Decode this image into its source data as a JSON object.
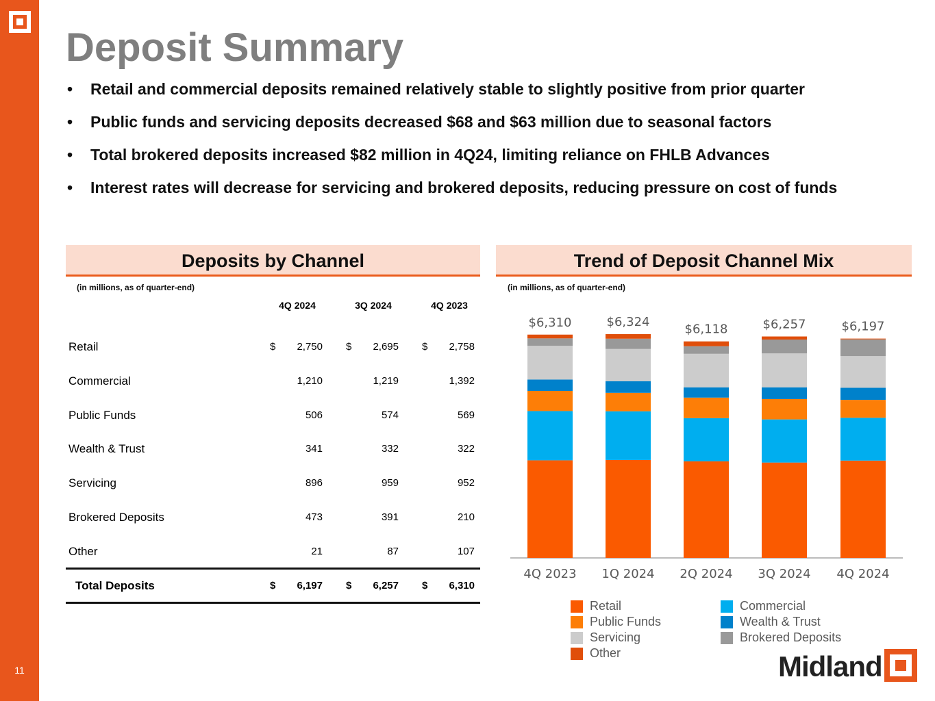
{
  "page_number": "11",
  "title": "Deposit Summary",
  "bullets": [
    "Retail and commercial deposits remained relatively stable to slightly positive from prior quarter",
    "Public funds and servicing deposits decreased $68 and $63 million due to seasonal factors",
    "Total brokered deposits increased $82 million in 4Q24, limiting reliance on FHLB Advances",
    "Interest rates will decrease for servicing and brokered deposits, reducing pressure on cost of funds"
  ],
  "table": {
    "title": "Deposits by Channel",
    "note": "(in millions, as of quarter-end)",
    "headers": [
      "4Q 2024",
      "3Q 2024",
      "4Q 2023"
    ],
    "rows": [
      {
        "label": "Retail",
        "values": [
          "2,750",
          "2,695",
          "2,758"
        ],
        "dollar": true
      },
      {
        "label": "Commercial",
        "values": [
          "1,210",
          "1,219",
          "1,392"
        ]
      },
      {
        "label": "Public Funds",
        "values": [
          "506",
          "574",
          "569"
        ]
      },
      {
        "label": "Wealth & Trust",
        "values": [
          "341",
          "332",
          "322"
        ]
      },
      {
        "label": "Servicing",
        "values": [
          "896",
          "959",
          "952"
        ]
      },
      {
        "label": "Brokered Deposits",
        "values": [
          "473",
          "391",
          "210"
        ]
      },
      {
        "label": "Other",
        "values": [
          "21",
          "87",
          "107"
        ]
      }
    ],
    "total": {
      "label": "Total Deposits",
      "values": [
        "6,197",
        "6,257",
        "6,310"
      ]
    },
    "currency": "$"
  },
  "chart_data": {
    "type": "bar",
    "stacked": true,
    "title": "Trend of Deposit Channel Mix",
    "note": "(in millions, as of quarter-end)",
    "categories": [
      "4Q 2023",
      "1Q 2024",
      "2Q 2024",
      "3Q 2024",
      "4Q 2024"
    ],
    "totals_labels": [
      "$6,310",
      "$6,324",
      "$6,118",
      "$6,257",
      "$6,197"
    ],
    "totals": [
      6310,
      6324,
      6118,
      6257,
      6197
    ],
    "series": [
      {
        "name": "Retail",
        "color": "#fa5a00",
        "values": [
          2758,
          2768,
          2729,
          2695,
          2750
        ]
      },
      {
        "name": "Commercial",
        "color": "#00aeef",
        "values": [
          1392,
          1374,
          1220,
          1219,
          1210
        ]
      },
      {
        "name": "Public Funds",
        "color": "#fd7e07",
        "values": [
          569,
          523,
          581,
          574,
          506
        ]
      },
      {
        "name": "Wealth & Trust",
        "color": "#0081cb",
        "values": [
          322,
          329,
          290,
          332,
          341
        ]
      },
      {
        "name": "Servicing",
        "color": "#cccccc",
        "values": [
          952,
          910,
          948,
          959,
          896
        ]
      },
      {
        "name": "Brokered Deposits",
        "color": "#999999",
        "values": [
          210,
          290,
          213,
          391,
          473
        ]
      },
      {
        "name": "Other",
        "color": "#e04e0a",
        "values": [
          107,
          130,
          137,
          87,
          21
        ]
      }
    ],
    "legend": "bottom"
  },
  "brand": "Midland"
}
